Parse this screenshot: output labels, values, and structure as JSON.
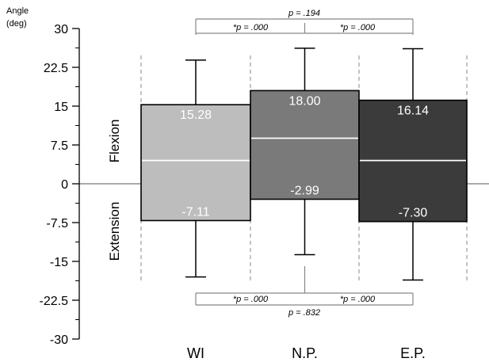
{
  "chart_data": {
    "type": "box",
    "ylabel_line1": "Angle",
    "ylabel_line2": "(deg)",
    "ylim": [
      -30,
      30
    ],
    "yticks": [
      30,
      22.5,
      15,
      7.5,
      0,
      -7.5,
      -15,
      -22.5,
      -30
    ],
    "ytick_labels": [
      "30",
      "22.5",
      "15",
      "7.5",
      "0",
      "-7.5",
      "-15",
      "-22.5",
      "-30"
    ],
    "region_labels": {
      "upper": "Flexion",
      "lower": "Extension"
    },
    "categories": [
      "WI",
      "N.P.",
      "E.P."
    ],
    "boxes": [
      {
        "label": "WI",
        "whisker_high": 23.9,
        "q3": 15.28,
        "median": 4.5,
        "q1": -7.11,
        "whisker_low": -18.0,
        "range_high": 24.8,
        "range_low": -18.8,
        "q3_label": "15.28",
        "q1_label": "-7.11",
        "color": "#bdbdbd"
      },
      {
        "label": "N.P.",
        "whisker_high": 26.2,
        "q3": 18.0,
        "median": 8.8,
        "q1": -2.99,
        "whisker_low": -13.7,
        "range_high": 24.8,
        "range_low": -18.8,
        "q3_label": "18.00",
        "q1_label": "-2.99",
        "color": "#7a7a7a"
      },
      {
        "label": "E.P.",
        "whisker_high": 26.1,
        "q3": 16.14,
        "median": 4.5,
        "q1": -7.3,
        "whisker_low": -18.6,
        "range_high": 24.8,
        "range_low": -18.8,
        "q3_label": "16.14",
        "q1_label": "-7.30",
        "color": "#3b3b3b"
      }
    ],
    "annotations": {
      "top_outer": "p = .194",
      "top_left": "*p = .000",
      "top_right": "*p = .000",
      "bottom_left": "*p = .000",
      "bottom_right": "*p = .000",
      "bottom_outer": "p = .832"
    },
    "colors": {
      "median_line": "#ffffff",
      "axis": "#000000",
      "bracket": "#888888",
      "dashed": "#888888"
    }
  }
}
